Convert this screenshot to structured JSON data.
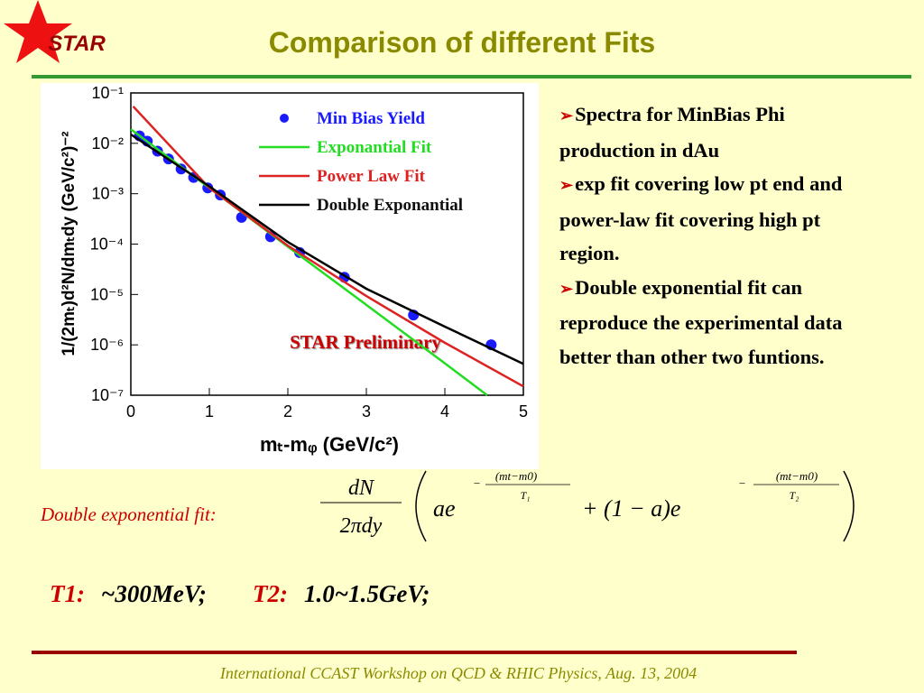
{
  "header": {
    "logo": "STAR",
    "title": "Comparison of different Fits"
  },
  "chart_data": {
    "type": "line",
    "log_y": true,
    "xlabel": "mₜ-mᵩ (GeV/c²)",
    "ylabel": "1/(2mₜ)d²N/dmₜdy (GeV/c²)⁻²",
    "annotation": "STAR Preliminary",
    "xlim": [
      0,
      5
    ],
    "xticks": [
      0,
      1,
      2,
      3,
      4,
      5
    ],
    "ylim": [
      1e-07,
      0.1
    ],
    "yticks": [
      {
        "value": 1e-07,
        "label": "10⁻⁷"
      },
      {
        "value": 1e-06,
        "label": "10⁻⁶"
      },
      {
        "value": 1e-05,
        "label": "10⁻⁵"
      },
      {
        "value": 0.0001,
        "label": "10⁻⁴"
      },
      {
        "value": 0.001,
        "label": "10⁻³"
      },
      {
        "value": 0.01,
        "label": "10⁻²"
      },
      {
        "value": 0.1,
        "label": "10⁻¹"
      }
    ],
    "series": [
      {
        "name": "Min Bias Yield",
        "color": "#1a1aff",
        "kind": "points",
        "x": [
          0.11,
          0.21,
          0.34,
          0.48,
          0.64,
          0.8,
          0.98,
          1.14,
          1.41,
          1.78,
          2.15,
          2.72,
          3.6,
          4.59
        ],
        "values": [
          0.014,
          0.011,
          0.007,
          0.0049,
          0.0031,
          0.0021,
          0.0013,
          0.00094,
          0.00034,
          0.00014,
          6.8e-05,
          2.2e-05,
          3.9e-06,
          1e-06
        ]
      },
      {
        "name": "Exponantial Fit",
        "color": "#22dd22",
        "kind": "line",
        "x": [
          0,
          1,
          2,
          3,
          4,
          4.54
        ],
        "values": [
          0.019,
          0.0013,
          8.9e-05,
          6.2e-06,
          4.3e-07,
          1e-07
        ]
      },
      {
        "name": "Power Law Fit",
        "color": "#dd2222",
        "kind": "line",
        "x": [
          0.03,
          1,
          2,
          3,
          4,
          5
        ],
        "values": [
          0.054,
          0.0013,
          9.3e-05,
          9.3e-06,
          1.1e-06,
          1.5e-07
        ]
      },
      {
        "name": "Double Exponantial",
        "color": "#000000",
        "kind": "line",
        "x": [
          0,
          1,
          2,
          3,
          4,
          5
        ],
        "values": [
          0.015,
          0.0014,
          0.00011,
          1.3e-05,
          2.3e-06,
          4.2e-07
        ]
      }
    ]
  },
  "bullets": [
    "Spectra for MinBias Phi production in dAu",
    "exp fit covering low pt end and power-law fit covering high pt region.",
    "Double exponential fit can reproduce the experimental data better than other two funtions."
  ],
  "formula": {
    "label": "Double exponential fit:",
    "numerator": "dN",
    "denominator": "2πdy",
    "term1": "ae",
    "exponent1": {
      "sign": "−",
      "numerator": "(mt−m0)",
      "denominator": "T₁"
    },
    "term2": "+ (1 − a)e",
    "exponent2": {
      "sign": "−",
      "numerator": "(mt−m0)",
      "denominator": "T₂"
    }
  },
  "params": {
    "t1_label": "T1:",
    "t1_value": "~300MeV;",
    "t2_label": "T2:",
    "t2_value": "1.0~1.5GeV;"
  },
  "footer": "International CCAST Workshop on QCD & RHIC Physics, Aug. 13, 2004"
}
